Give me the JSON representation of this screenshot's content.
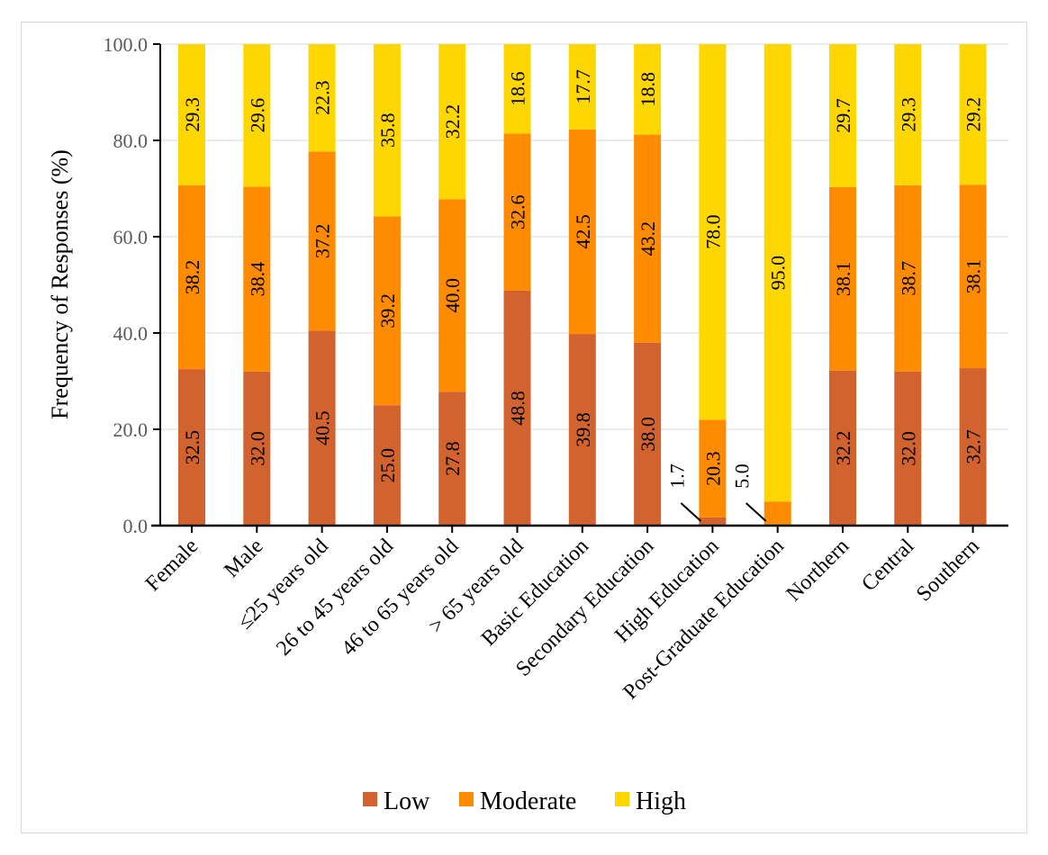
{
  "chart_data": {
    "type": "bar",
    "stacked": true,
    "orientation": "vertical",
    "title": "",
    "xlabel": "",
    "ylabel": "Frequency of Responses (%)",
    "ylim": [
      0,
      100
    ],
    "yticks": [
      "0.0",
      "20.0",
      "40.0",
      "60.0",
      "80.0",
      "100.0"
    ],
    "grid": true,
    "legend_position": "bottom",
    "categories": [
      "Female",
      "Male",
      "≤25 years old",
      "26 to 45 years old",
      "46 to 65 years old",
      "> 65 years old",
      "Basic Education",
      "Secondary Education",
      "High Education",
      "Post-Graduate Education",
      "Northern",
      "Central",
      "Southern"
    ],
    "series": [
      {
        "name": "Low",
        "color": "#d2632f",
        "values": [
          32.5,
          32.0,
          40.5,
          25.0,
          27.8,
          48.8,
          39.8,
          38.0,
          1.7,
          0.0,
          32.2,
          32.0,
          32.7
        ]
      },
      {
        "name": "Moderate",
        "color": "#ff8c00",
        "values": [
          38.2,
          38.4,
          37.2,
          39.2,
          40.0,
          32.6,
          42.5,
          43.2,
          20.3,
          5.0,
          38.1,
          38.7,
          38.1
        ]
      },
      {
        "name": "High",
        "color": "#ffd700",
        "values": [
          29.3,
          29.6,
          22.3,
          35.8,
          32.2,
          18.6,
          17.7,
          18.8,
          78.0,
          95.0,
          29.7,
          29.3,
          29.2
        ]
      }
    ],
    "data_labels": {
      "Low": [
        "32.5",
        "32.0",
        "40.5",
        "25.0",
        "27.8",
        "48.8",
        "39.8",
        "38.0",
        "1.7",
        "",
        "32.2",
        "32.0",
        "32.7"
      ],
      "Moderate": [
        "38.2",
        "38.4",
        "37.2",
        "39.2",
        "40.0",
        "32.6",
        "42.5",
        "43.2",
        "20.3",
        "5.0",
        "38.1",
        "38.7",
        "38.1"
      ],
      "High": [
        "29.3",
        "29.6",
        "22.3",
        "35.8",
        "32.2",
        "18.6",
        "17.7",
        "18.8",
        "78.0",
        "95.0",
        "29.7",
        "29.3",
        "29.2"
      ]
    }
  }
}
